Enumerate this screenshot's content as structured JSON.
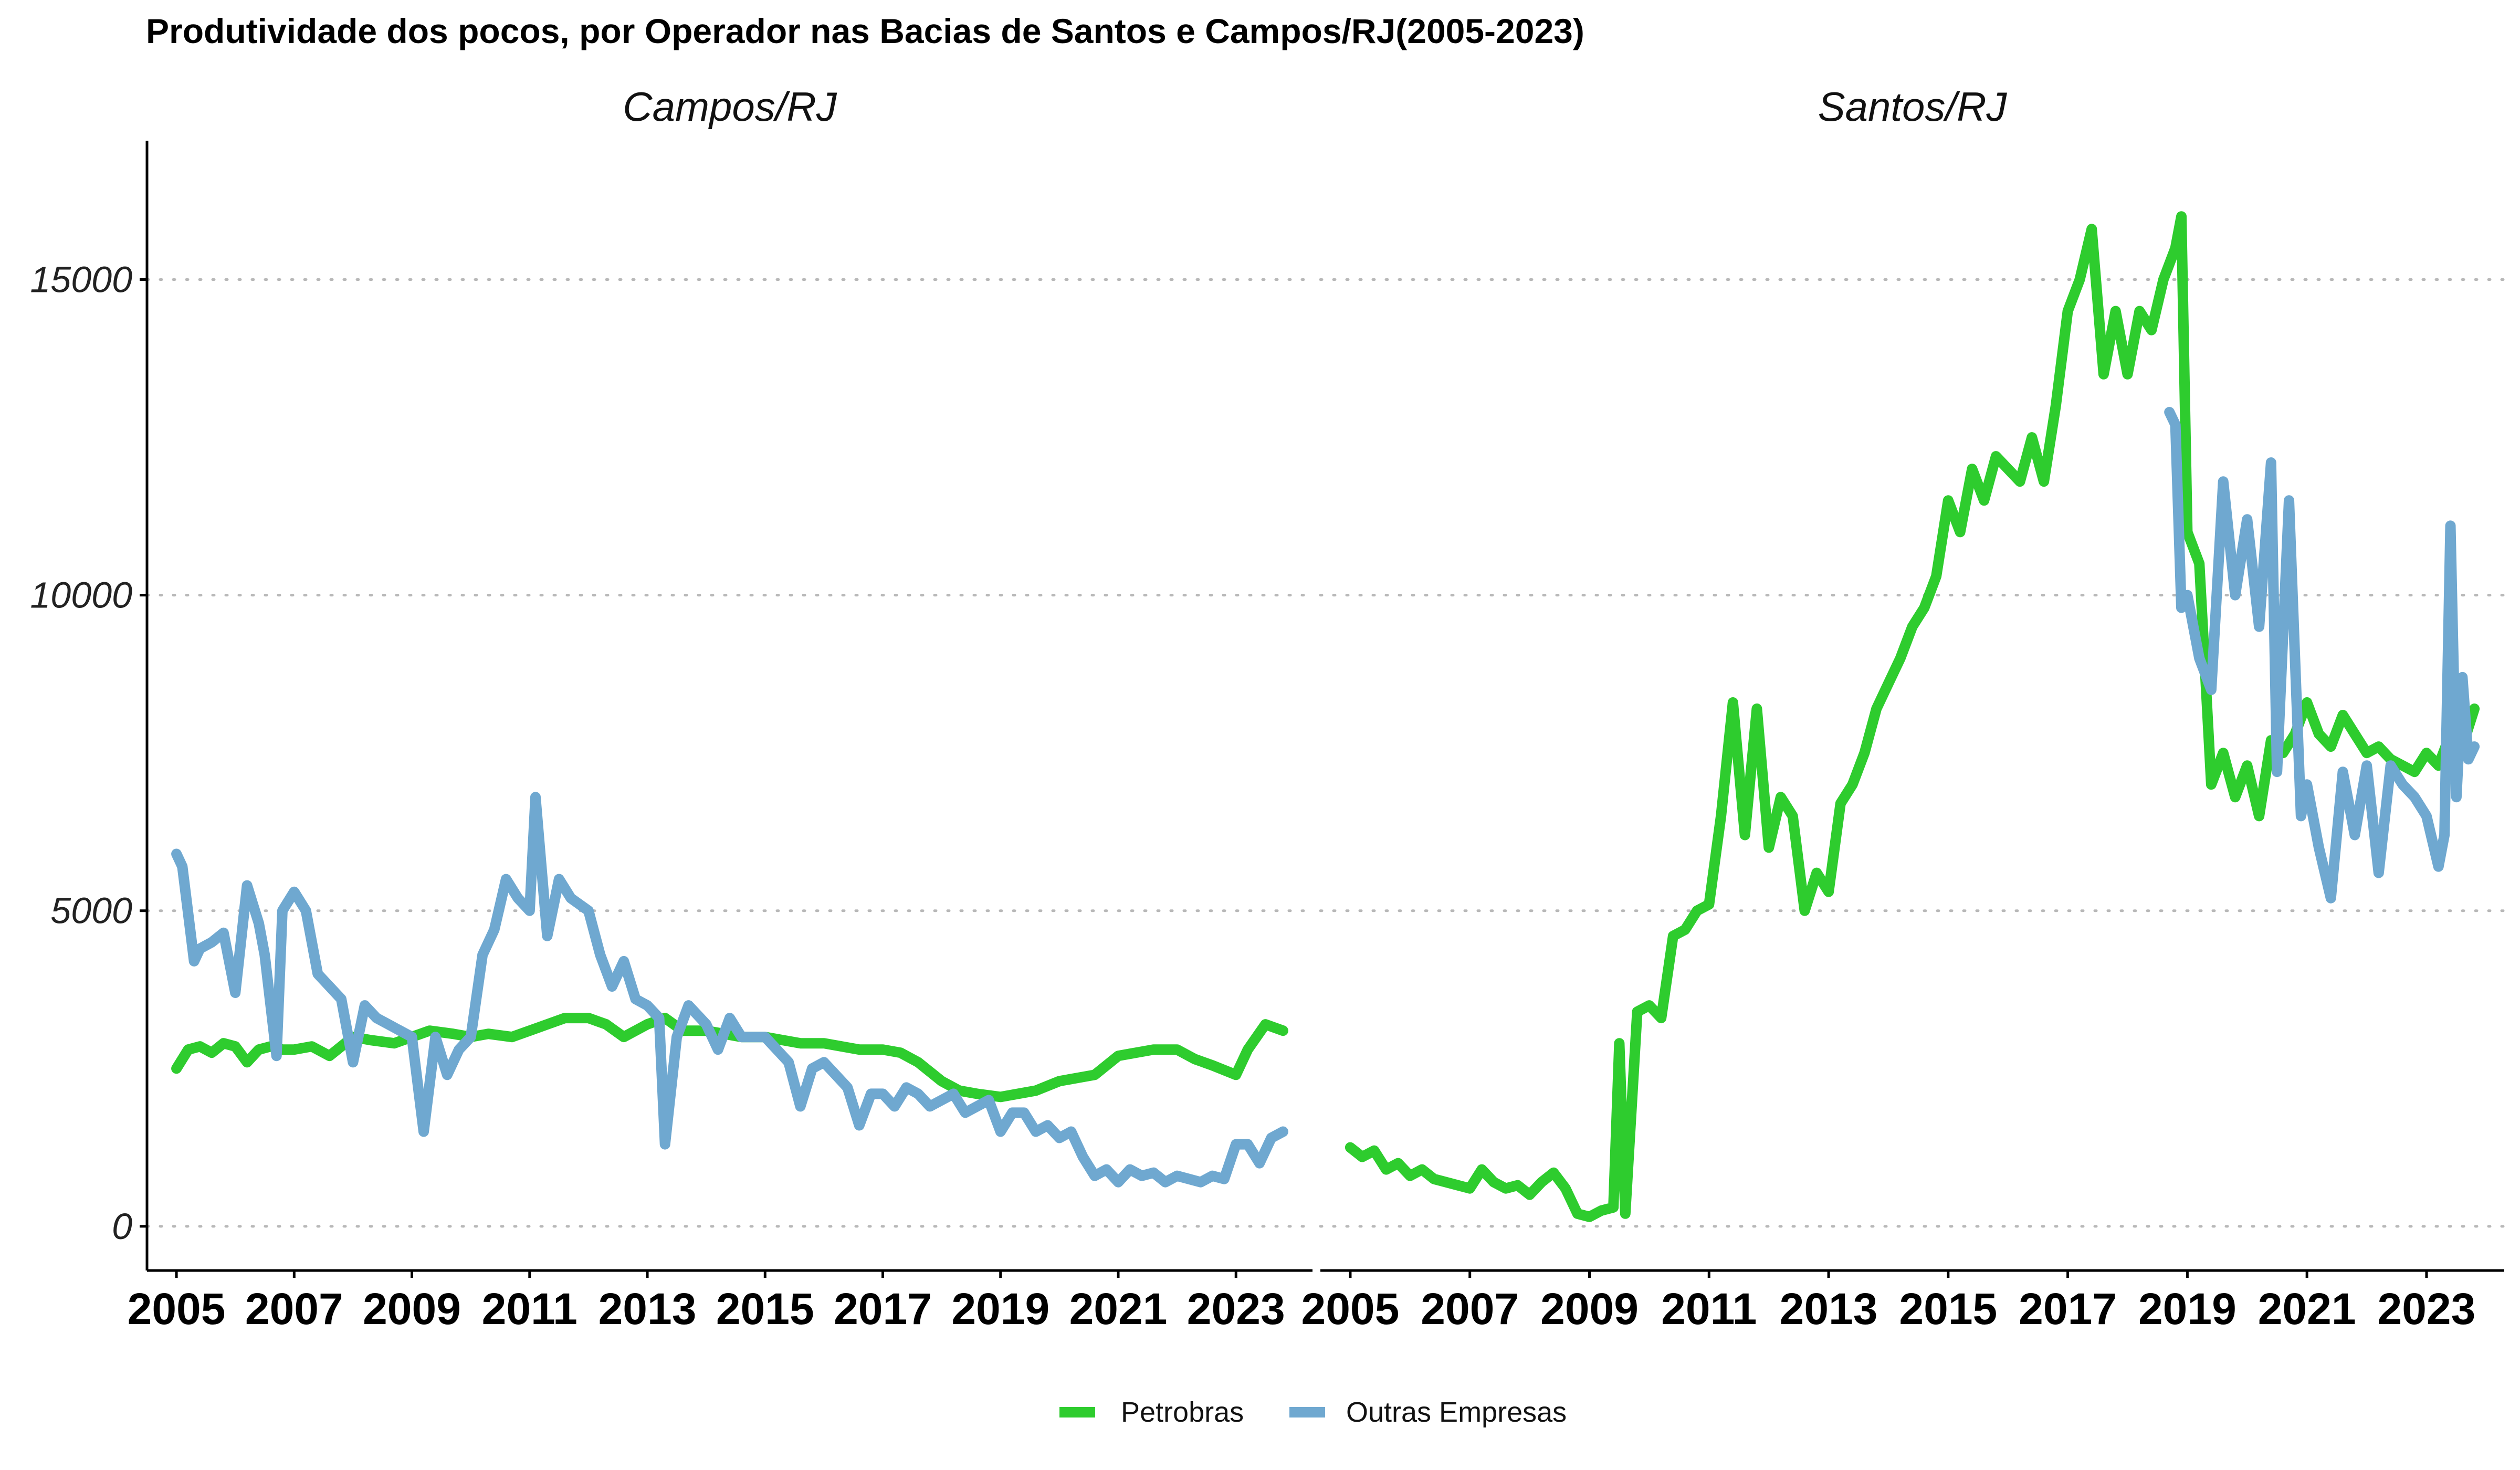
{
  "chart_data": {
    "type": "line",
    "title": "Produtividade dos pocos, por Operador nas Bacias de Santos e Campos/RJ(2005-2023)",
    "xlabel": "",
    "ylabel": "",
    "x_ticks": [
      "2005",
      "2007",
      "2009",
      "2011",
      "2013",
      "2015",
      "2017",
      "2019",
      "2021",
      "2023"
    ],
    "y_ticks": [
      "0",
      "5000",
      "10000",
      "15000"
    ],
    "xlim": [
      2004.5,
      2024.3
    ],
    "ylim": [
      -700,
      17200
    ],
    "grid": "horizontal dotted",
    "legend_position": "bottom",
    "colors": {
      "Petrobras": "#2ecc2e",
      "Outras Empresas": "#6fa8d0"
    },
    "legend": [
      "Petrobras",
      "Outras Empresas"
    ],
    "panels": [
      {
        "name": "Campos/RJ",
        "series": [
          {
            "name": "Petrobras",
            "x": [
              2005.0,
              2005.2,
              2005.4,
              2005.6,
              2005.8,
              2006.0,
              2006.2,
              2006.4,
              2006.6,
              2006.8,
              2007.0,
              2007.3,
              2007.6,
              2008.0,
              2008.3,
              2008.7,
              2009.0,
              2009.3,
              2009.7,
              2010.0,
              2010.3,
              2010.7,
              2011.0,
              2011.3,
              2011.6,
              2012.0,
              2012.3,
              2012.6,
              2013.0,
              2013.3,
              2013.6,
              2014.0,
              2014.3,
              2014.6,
              2015.0,
              2015.3,
              2015.6,
              2016.0,
              2016.3,
              2016.6,
              2017.0,
              2017.3,
              2017.6,
              2018.0,
              2018.3,
              2018.6,
              2019.0,
              2019.3,
              2019.6,
              2020.0,
              2020.3,
              2020.6,
              2021.0,
              2021.3,
              2021.6,
              2022.0,
              2022.3,
              2022.6,
              2023.0,
              2023.2,
              2023.5,
              2023.8
            ],
            "y": [
              2500,
              2800,
              2850,
              2750,
              2900,
              2850,
              2600,
              2800,
              2850,
              2800,
              2800,
              2850,
              2700,
              3000,
              2950,
              2900,
              3000,
              3100,
              3050,
              3000,
              3050,
              3000,
              3100,
              3200,
              3300,
              3300,
              3200,
              3000,
              3200,
              3300,
              3100,
              3100,
              3050,
              3000,
              3000,
              2950,
              2900,
              2900,
              2850,
              2800,
              2800,
              2750,
              2600,
              2300,
              2150,
              2100,
              2050,
              2100,
              2150,
              2300,
              2350,
              2400,
              2700,
              2750,
              2800,
              2800,
              2650,
              2550,
              2400,
              2800,
              3200,
              3100
            ]
          },
          {
            "name": "Outras Empresas",
            "x": [
              2005.0,
              2005.1,
              2005.3,
              2005.4,
              2005.6,
              2005.8,
              2006.0,
              2006.2,
              2006.4,
              2006.5,
              2006.7,
              2006.8,
              2007.0,
              2007.2,
              2007.4,
              2007.6,
              2007.8,
              2008.0,
              2008.2,
              2008.4,
              2008.6,
              2008.8,
              2009.0,
              2009.2,
              2009.4,
              2009.6,
              2009.8,
              2010.0,
              2010.2,
              2010.4,
              2010.6,
              2010.8,
              2011.0,
              2011.1,
              2011.3,
              2011.5,
              2011.7,
              2012.0,
              2012.2,
              2012.4,
              2012.6,
              2012.8,
              2013.0,
              2013.2,
              2013.3,
              2013.5,
              2013.7,
              2014.0,
              2014.2,
              2014.4,
              2014.6,
              2014.8,
              2015.0,
              2015.2,
              2015.4,
              2015.6,
              2015.8,
              2016.0,
              2016.2,
              2016.4,
              2016.6,
              2016.8,
              2017.0,
              2017.2,
              2017.4,
              2017.6,
              2017.8,
              2018.0,
              2018.2,
              2018.4,
              2018.6,
              2018.8,
              2019.0,
              2019.2,
              2019.4,
              2019.6,
              2019.8,
              2020.0,
              2020.2,
              2020.4,
              2020.6,
              2020.8,
              2021.0,
              2021.2,
              2021.4,
              2021.6,
              2021.8,
              2022.0,
              2022.2,
              2022.4,
              2022.6,
              2022.8,
              2023.0,
              2023.2,
              2023.4,
              2023.6,
              2023.8
            ],
            "y": [
              5900,
              5700,
              4200,
              4400,
              4500,
              4650,
              3700,
              5400,
              4800,
              4300,
              2700,
              5000,
              5300,
              5000,
              4000,
              3800,
              3600,
              2600,
              3500,
              3300,
              3200,
              3100,
              3000,
              1500,
              3000,
              2400,
              2800,
              3000,
              4300,
              4700,
              5500,
              5200,
              5000,
              6800,
              4600,
              5500,
              5200,
              5000,
              4300,
              3800,
              4200,
              3600,
              3500,
              3300,
              1300,
              3000,
              3500,
              3200,
              2800,
              3300,
              3000,
              3000,
              3000,
              2800,
              2600,
              1900,
              2500,
              2600,
              2400,
              2200,
              1600,
              2100,
              2100,
              1900,
              2200,
              2100,
              1900,
              2000,
              2100,
              1800,
              1900,
              2000,
              1500,
              1800,
              1800,
              1500,
              1600,
              1400,
              1500,
              1100,
              800,
              900,
              700,
              900,
              800,
              850,
              700,
              800,
              750,
              700,
              800,
              750,
              1300,
              1300,
              1000,
              1400,
              1500
            ]
          }
        ]
      },
      {
        "name": "Santos/RJ",
        "series": [
          {
            "name": "Petrobras",
            "x": [
              2005.0,
              2005.2,
              2005.4,
              2005.6,
              2005.8,
              2006.0,
              2006.2,
              2006.4,
              2006.6,
              2006.8,
              2007.0,
              2007.2,
              2007.4,
              2007.6,
              2007.8,
              2008.0,
              2008.2,
              2008.4,
              2008.6,
              2008.8,
              2009.0,
              2009.2,
              2009.4,
              2009.5,
              2009.6,
              2009.8,
              2010.0,
              2010.2,
              2010.4,
              2010.6,
              2010.8,
              2011.0,
              2011.2,
              2011.4,
              2011.6,
              2011.8,
              2012.0,
              2012.2,
              2012.4,
              2012.6,
              2012.8,
              2013.0,
              2013.2,
              2013.4,
              2013.6,
              2013.8,
              2014.0,
              2014.2,
              2014.4,
              2014.6,
              2014.8,
              2015.0,
              2015.2,
              2015.4,
              2015.6,
              2015.8,
              2016.0,
              2016.2,
              2016.4,
              2016.6,
              2016.8,
              2017.0,
              2017.2,
              2017.4,
              2017.6,
              2017.8,
              2018.0,
              2018.2,
              2018.4,
              2018.6,
              2018.8,
              2018.9,
              2019.0,
              2019.2,
              2019.4,
              2019.6,
              2019.8,
              2020.0,
              2020.2,
              2020.4,
              2020.6,
              2020.8,
              2021.0,
              2021.2,
              2021.4,
              2021.6,
              2021.8,
              2022.0,
              2022.2,
              2022.4,
              2022.6,
              2022.8,
              2023.0,
              2023.2,
              2023.4,
              2023.6,
              2023.8
            ],
            "y": [
              1250,
              1100,
              1200,
              900,
              1000,
              800,
              900,
              750,
              700,
              650,
              600,
              900,
              700,
              600,
              650,
              500,
              700,
              850,
              600,
              200,
              150,
              250,
              300,
              2900,
              200,
              3400,
              3500,
              3300,
              4600,
              4700,
              5000,
              5100,
              6500,
              8300,
              6200,
              8200,
              6000,
              6800,
              6500,
              5000,
              5600,
              5300,
              6700,
              7000,
              7500,
              8200,
              8600,
              9000,
              9500,
              9800,
              10300,
              11500,
              11000,
              12000,
              11500,
              12200,
              12000,
              11800,
              12500,
              11800,
              13000,
              14500,
              15000,
              15800,
              13500,
              14500,
              13500,
              14500,
              14200,
              15000,
              15500,
              16000,
              11000,
              10500,
              7000,
              7500,
              6800,
              7300,
              6500,
              7700,
              7500,
              7800,
              8300,
              7800,
              7600,
              8100,
              7800,
              7500,
              7600,
              7400,
              7300,
              7200,
              7500,
              7300,
              7800,
              7600,
              8200
            ]
          },
          {
            "name": "Outras Empresas",
            "x": [
              2018.7,
              2018.8,
              2018.9,
              2019.0,
              2019.2,
              2019.4,
              2019.6,
              2019.8,
              2020.0,
              2020.2,
              2020.4,
              2020.5,
              2020.7,
              2020.9,
              2021.0,
              2021.2,
              2021.4,
              2021.6,
              2021.8,
              2022.0,
              2022.2,
              2022.4,
              2022.6,
              2022.8,
              2023.0,
              2023.2,
              2023.3,
              2023.4,
              2023.5,
              2023.6,
              2023.7,
              2023.8
            ],
            "y": [
              12900,
              12700,
              9800,
              10000,
              9000,
              8500,
              11800,
              10000,
              11200,
              9500,
              12100,
              7200,
              11500,
              6500,
              7000,
              6000,
              5200,
              7200,
              6200,
              7300,
              5600,
              7300,
              7000,
              6800,
              6500,
              5700,
              6200,
              11100,
              6800,
              8700,
              7400,
              7600
            ]
          }
        ]
      }
    ]
  }
}
